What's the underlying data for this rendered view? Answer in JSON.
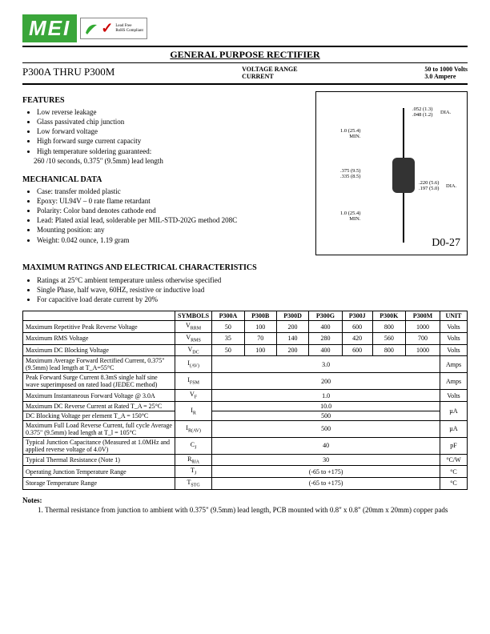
{
  "logo": {
    "text": "MEI",
    "leadfree_line1": "Lead Free",
    "leadfree_line2": "RoHS Compliant"
  },
  "title": "GENERAL PURPOSE RECTIFIER",
  "part_range": "P300A  THRU  P300M",
  "header": {
    "vr_label": "VOLTAGE RANGE",
    "cur_label": "CURRENT",
    "vr_value": "50 to 1000 Volts",
    "cur_value": "3.0 Ampere"
  },
  "features": {
    "heading": "FEATURES",
    "items": [
      "Low reverse leakage",
      "Glass passivated chip junction",
      "Low forward voltage",
      "High forward surge current capacity",
      "High temperature soldering guaranteed:",
      "260 /10 seconds, 0.375\" (9.5mm) lead length"
    ]
  },
  "mechanical": {
    "heading": "MECHANICAL DATA",
    "items": [
      "Case:  transfer molded plastic",
      "Epoxy:  UL94V – 0 rate flame retardant",
      "Polarity:  Color band denotes cathode end",
      "Lead:  Plated axial lead, solderable per MIL-STD-202G method 208C",
      "Mounting position:  any",
      "Weight:  0.042 ounce, 1.19 gram"
    ]
  },
  "diagram": {
    "package_label": "D0-27",
    "dim1": ".052 (1.3)\n.048 (1.2)",
    "dim1_suffix": "DIA.",
    "dim2": "1.0 (25.4)\nMIN.",
    "dim3": ".375 (9.5)\n.335 (8.5)",
    "dim4": ".220 (5.6)\n.197 (5.0)",
    "dim4_suffix": "DIA.",
    "dim5": "1.0 (25.4)\nMIN."
  },
  "ratings": {
    "heading": "MAXIMUM RATINGS AND ELECTRICAL CHARACTERISTICS",
    "notes": [
      "Ratings at 25°C ambient temperature unless otherwise specified",
      "Single Phase, half wave, 60HZ, resistive or inductive load",
      "For capacitive load derate current by 20%"
    ]
  },
  "table": {
    "headers": [
      "SYMBOLS",
      "P300A",
      "P300B",
      "P300D",
      "P300G",
      "P300J",
      "P300K",
      "P300M",
      "UNIT"
    ],
    "rows": [
      {
        "param": "Maximum Repetitive Peak Reverse Voltage",
        "sym": "V_RRM",
        "vals": [
          "50",
          "100",
          "200",
          "400",
          "600",
          "800",
          "1000"
        ],
        "unit": "Volts"
      },
      {
        "param": "Maximum RMS Voltage",
        "sym": "V_RMS",
        "vals": [
          "35",
          "70",
          "140",
          "280",
          "420",
          "560",
          "700"
        ],
        "unit": "Volts"
      },
      {
        "param": "Maximum DC Blocking Voltage",
        "sym": "V_DC",
        "vals": [
          "50",
          "100",
          "200",
          "400",
          "600",
          "800",
          "1000"
        ],
        "unit": "Volts"
      },
      {
        "param": "Maximum Average Forward Rectified Current, 0.375\" (9.5mm) lead length at T_A=55°C",
        "sym": "I_(AV)",
        "span": "3.0",
        "unit": "Amps"
      },
      {
        "param": "Peak Forward Surge Current\n8.3mS single half sine wave superimposed on rated load (JEDEC method)",
        "sym": "I_FSM",
        "span": "200",
        "unit": "Amps"
      },
      {
        "param": "Maximum Instantaneous Forward Voltage @ 3.0A",
        "sym": "V_F",
        "span": "1.0",
        "unit": "Volts"
      },
      {
        "param": "Maximum DC Reverse Current at Rated     T_A = 25°C",
        "sym": "I_R",
        "span": "10.0",
        "unit": "µA",
        "rowspan": 2
      },
      {
        "param": "DC Blocking Voltage per element            T_A = 150°C",
        "span": "500",
        "cont": true
      },
      {
        "param": "Maximum Full Load Reverse Current, full cycle Average 0.375\" (9.5mm) lead length at T_l = 105°C",
        "sym": "I_R(AV)",
        "span": "500",
        "unit": "µA"
      },
      {
        "param": "Typical Junction Capacitance\n(Measured at 1.0MHz and applied reverse voltage of 4.0V)",
        "sym": "C_J",
        "span": "40",
        "unit": "pF"
      },
      {
        "param": "Typical Thermal Resistance  (Note 1)",
        "sym": "R_θJA",
        "span": "30",
        "unit": "°C/W"
      },
      {
        "param": "Operating Junction Temperature Range",
        "sym": "T_J",
        "span": "(-65 to +175)",
        "unit": "°C"
      },
      {
        "param": "Storage Temperature Range",
        "sym": "T_STG",
        "span": "(-65 to +175)",
        "unit": "°C"
      }
    ]
  },
  "footnotes": {
    "heading": "Notes:",
    "items": [
      "Thermal resistance from junction to ambient with 0.375\" (9.5mm) lead length, PCB mounted with 0.8\" x 0.8\" (20mm x 20mm) copper pads"
    ]
  }
}
